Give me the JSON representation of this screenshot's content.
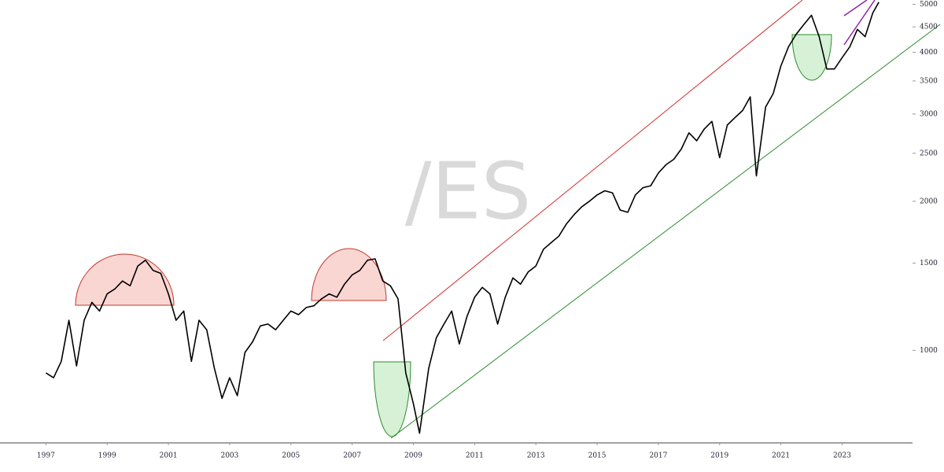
{
  "chart_data": {
    "type": "line",
    "watermark": "/ES",
    "log_scale": true,
    "color": "#000000",
    "x": [
      1997.0,
      1997.25,
      1997.5,
      1997.75,
      1998.0,
      1998.25,
      1998.5,
      1998.75,
      1999.0,
      1999.25,
      1999.5,
      1999.75,
      2000.0,
      2000.25,
      2000.5,
      2000.75,
      2001.0,
      2001.25,
      2001.5,
      2001.75,
      2002.0,
      2002.25,
      2002.5,
      2002.75,
      2003.0,
      2003.25,
      2003.5,
      2003.75,
      2004.0,
      2004.25,
      2004.5,
      2004.75,
      2005.0,
      2005.25,
      2005.5,
      2005.75,
      2006.0,
      2006.25,
      2006.5,
      2006.75,
      2007.0,
      2007.25,
      2007.5,
      2007.75,
      2008.0,
      2008.25,
      2008.5,
      2008.75,
      2009.0,
      2009.2,
      2009.5,
      2009.75,
      2010.0,
      2010.25,
      2010.5,
      2010.75,
      2011.0,
      2011.25,
      2011.5,
      2011.75,
      2012.0,
      2012.25,
      2012.5,
      2012.75,
      2013.0,
      2013.25,
      2013.5,
      2013.75,
      2014.0,
      2014.25,
      2014.5,
      2014.75,
      2015.0,
      2015.25,
      2015.5,
      2015.75,
      2016.0,
      2016.25,
      2016.5,
      2016.75,
      2017.0,
      2017.25,
      2017.5,
      2017.75,
      2018.0,
      2018.25,
      2018.5,
      2018.75,
      2019.0,
      2019.25,
      2019.5,
      2019.75,
      2020.0,
      2020.2,
      2020.5,
      2020.75,
      2021.0,
      2021.25,
      2021.5,
      2021.75,
      2022.0,
      2022.25,
      2022.5,
      2022.75,
      2023.0,
      2023.25,
      2023.5,
      2023.75,
      2024.0,
      2024.2
    ],
    "values": [
      900,
      880,
      950,
      1150,
      930,
      1150,
      1250,
      1200,
      1300,
      1330,
      1380,
      1350,
      1480,
      1520,
      1450,
      1430,
      1300,
      1150,
      1200,
      950,
      1150,
      1100,
      920,
      800,
      880,
      810,
      990,
      1040,
      1120,
      1130,
      1100,
      1150,
      1200,
      1180,
      1220,
      1230,
      1270,
      1300,
      1280,
      1360,
      1420,
      1450,
      1520,
      1530,
      1380,
      1350,
      1270,
      900,
      780,
      680,
      920,
      1060,
      1130,
      1200,
      1030,
      1170,
      1280,
      1340,
      1300,
      1130,
      1280,
      1400,
      1360,
      1440,
      1480,
      1600,
      1650,
      1700,
      1800,
      1880,
      1950,
      2000,
      2060,
      2100,
      2080,
      1920,
      1900,
      2060,
      2130,
      2150,
      2280,
      2370,
      2430,
      2550,
      2750,
      2650,
      2800,
      2900,
      2450,
      2850,
      2950,
      3050,
      3250,
      2250,
      3100,
      3300,
      3750,
      4100,
      4350,
      4550,
      4750,
      4300,
      3700,
      3700,
      3900,
      4100,
      4450,
      4300,
      4800,
      5050
    ],
    "xlim": [
      1995.5,
      2025.3
    ],
    "xticks": [
      1997,
      1999,
      2001,
      2003,
      2005,
      2007,
      2009,
      2011,
      2013,
      2015,
      2017,
      2019,
      2021,
      2023
    ],
    "ylim": [
      650,
      5100
    ],
    "yticks": [
      1000,
      1500,
      2000,
      2500,
      3000,
      3500,
      4000,
      4500,
      5000
    ]
  }
}
